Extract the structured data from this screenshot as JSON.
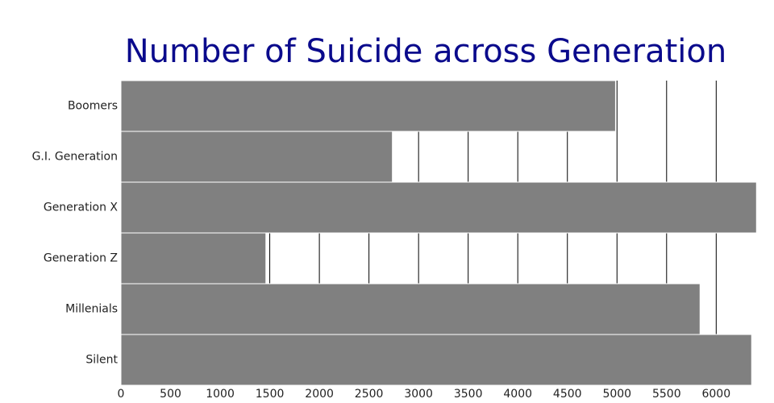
{
  "chart_data": {
    "type": "bar",
    "orientation": "horizontal",
    "title": "Number of Suicide across Generation",
    "categories": [
      "Boomers",
      "G.I. Generation",
      "Generation X",
      "Generation Z",
      "Millenials",
      "Silent"
    ],
    "values": [
      4985,
      2736,
      6406,
      1461,
      5837,
      6357
    ],
    "color": "#808080",
    "xlim": [
      0,
      6420
    ],
    "xticks": [
      0,
      500,
      1000,
      1500,
      2000,
      2500,
      3000,
      3500,
      4000,
      4500,
      5000,
      5500,
      6000
    ],
    "grid": true
  }
}
